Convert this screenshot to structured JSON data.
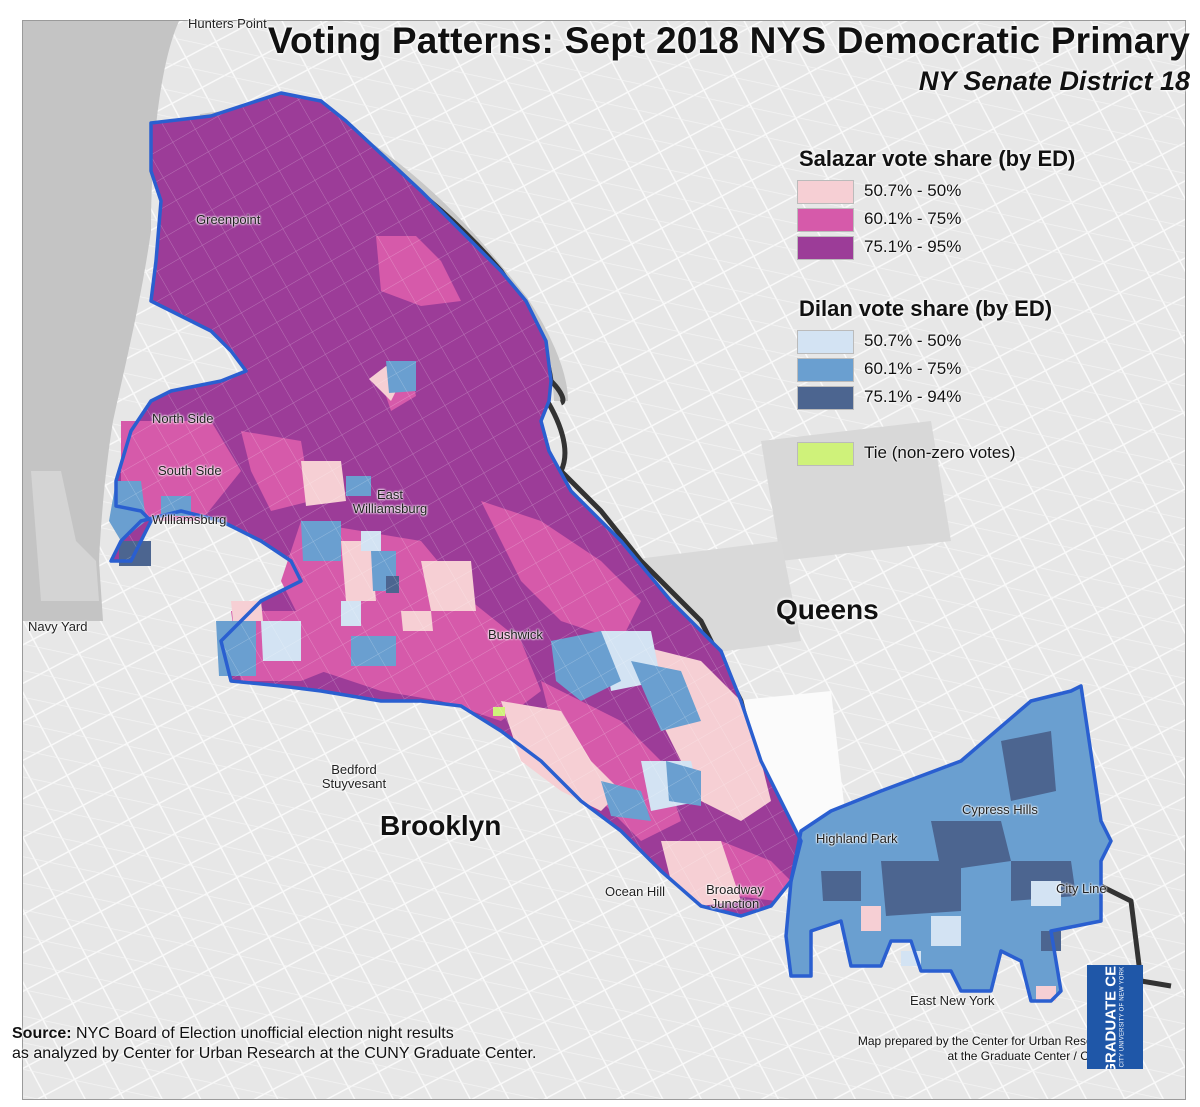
{
  "title": "Voting Patterns: Sept 2018 NYS Democratic Primary",
  "subtitle": "NY Senate District 18",
  "legend": {
    "salazar": {
      "heading": "Salazar vote share (by ED)",
      "items": [
        {
          "label": "50.7% - 50%",
          "color": "#f6cfd4"
        },
        {
          "label": "60.1% - 75%",
          "color": "#d65aaa"
        },
        {
          "label": "75.1% - 95%",
          "color": "#9c3c98"
        }
      ]
    },
    "dilan": {
      "heading": "Dilan vote share (by ED)",
      "items": [
        {
          "label": "50.7% - 50%",
          "color": "#d3e3f3"
        },
        {
          "label": "60.1% - 75%",
          "color": "#6a9fd0"
        },
        {
          "label": "75.1% - 94%",
          "color": "#4c6590"
        }
      ]
    },
    "tie": {
      "label": "Tie (non-zero votes)",
      "color": "#cff27a"
    }
  },
  "places": {
    "hunters_point": "Hunters Point",
    "greenpoint": "Greenpoint",
    "north_side": "North Side",
    "south_side": "South Side",
    "williamsburg": "Williamsburg",
    "east_williamsburg_1": "East",
    "east_williamsburg_2": "Williamsburg",
    "navy_yard": "Navy Yard",
    "bushwick": "Bushwick",
    "bedford_1": "Bedford",
    "bedford_2": "Stuyvesant",
    "ocean_hill": "Ocean Hill",
    "broadway_junction_1": "Broadway",
    "broadway_junction_2": "Junction",
    "highland_park": "Highland Park",
    "cypress_hills": "Cypress Hills",
    "city_line": "City Line",
    "east_new_york": "East New York"
  },
  "boroughs": {
    "queens": "Queens",
    "brooklyn": "Brooklyn"
  },
  "source": {
    "label": "Source:",
    "line1": "NYC Board of Election unofficial election night results",
    "line2": "as analyzed by Center for Urban Research at the CUNY Graduate Center."
  },
  "credit": {
    "line1": "Map prepared by the Center for Urban Research",
    "line2": "at the Graduate Center / CUNY."
  },
  "logo": {
    "line1": "THE GRADUATE CENTER",
    "line2": "CITY UNIVERSITY OF NEW YORK"
  },
  "colors": {
    "map_background": "#e6e6e6",
    "river": "#c4c4c4",
    "district_outline": "#2a5fd0",
    "county_line": "#333333",
    "logo_blue": "#1f57a8"
  }
}
